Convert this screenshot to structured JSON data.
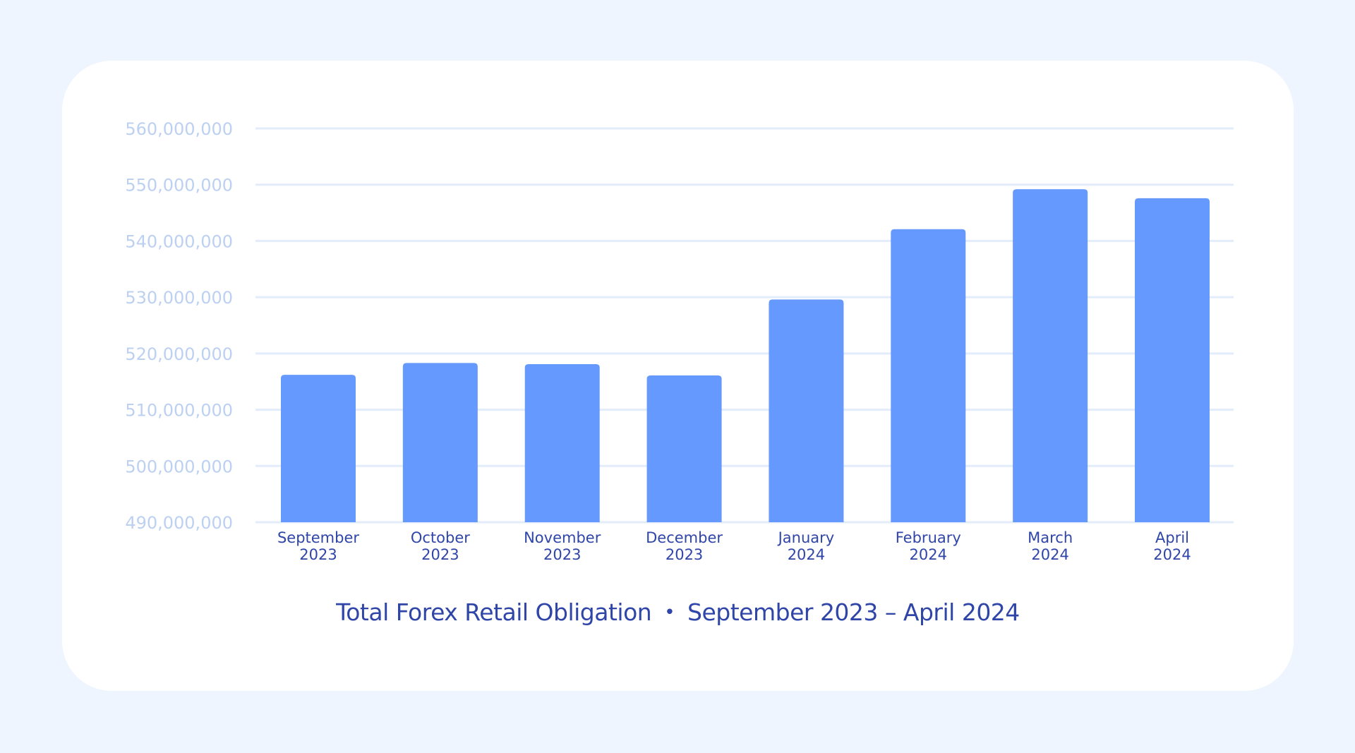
{
  "chart_data": {
    "type": "bar",
    "title": "Total Forex Retail Obligation",
    "subtitle": "September 2023 – April 2024",
    "title_separator": "•",
    "xlabel": "",
    "ylabel": "",
    "categories": [
      [
        "September",
        "2023"
      ],
      [
        "October",
        "2023"
      ],
      [
        "November",
        "2023"
      ],
      [
        "December",
        "2023"
      ],
      [
        "January",
        "2024"
      ],
      [
        "February",
        "2024"
      ],
      [
        "March",
        "2024"
      ],
      [
        "April",
        "2024"
      ]
    ],
    "values": [
      516200000,
      518300000,
      518100000,
      516100000,
      529600000,
      542100000,
      549200000,
      547600000
    ],
    "ylim": [
      490000000,
      560000000
    ],
    "yticks": [
      "490,000,000",
      "500,000,000",
      "510,000,000",
      "520,000,000",
      "530,000,000",
      "540,000,000",
      "550,000,000",
      "560,000,000"
    ],
    "ytick_values": [
      490000000,
      500000000,
      510000000,
      520000000,
      530000000,
      540000000,
      550000000,
      560000000
    ],
    "grid": true,
    "colors": {
      "bar": "#6699fd",
      "grid": "#e3ecfb",
      "ytick": "#bcd0f2",
      "xtick": "#2f45a8",
      "title": "#2f45a8",
      "background": "#eef5fe",
      "card": "#ffffff"
    }
  }
}
